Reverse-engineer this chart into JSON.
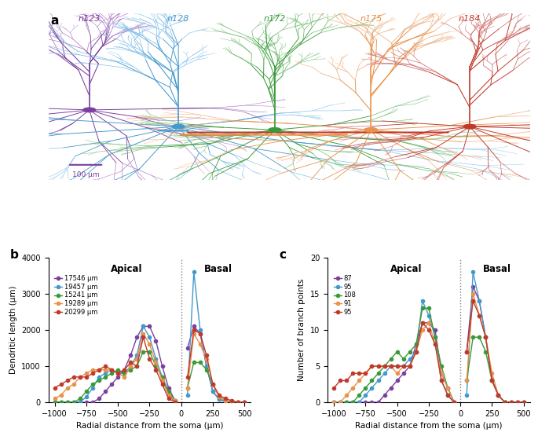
{
  "neuron_names": [
    "n123",
    "n128",
    "n172",
    "n175",
    "n184"
  ],
  "neuron_colors": [
    "#7B3F9E",
    "#4499CC",
    "#3A9A3A",
    "#E8924A",
    "#C0392B"
  ],
  "neuron_colors_light": [
    "#B080C8",
    "#85C1E9",
    "#70BB70",
    "#F0B080",
    "#D07070"
  ],
  "panel_a_label": "a",
  "panel_b_label": "b",
  "panel_c_label": "c",
  "scalebar_text": "100 μm",
  "apical_label": "Apical",
  "basal_label": "Basal",
  "xlabel": "Radial distance from the soma (μm)",
  "ylabel_b": "Dendritic length (μm)",
  "ylabel_c": "Number of branch points",
  "legend_b": [
    "17546 μm",
    "19457 μm",
    "15241 μm",
    "19289 μm",
    "20299 μm"
  ],
  "legend_c": [
    "87",
    "95",
    "108",
    "91",
    "95"
  ],
  "xlim": [
    -1050,
    550
  ],
  "xticks": [
    -1000,
    -750,
    -500,
    -250,
    0,
    250,
    500
  ],
  "ylim_b": [
    0,
    4000
  ],
  "yticks_b": [
    0,
    1000,
    2000,
    3000,
    4000
  ],
  "ylim_c": [
    0,
    20
  ],
  "yticks_c": [
    0,
    5,
    10,
    15,
    20
  ],
  "x_apical": [
    -1000,
    -950,
    -900,
    -850,
    -800,
    -750,
    -700,
    -650,
    -600,
    -550,
    -500,
    -450,
    -400,
    -350,
    -300,
    -250,
    -200,
    -150,
    -100,
    -50
  ],
  "x_basal": [
    50,
    100,
    150,
    200,
    250,
    300,
    350,
    400,
    450,
    500
  ],
  "b_n123_apical": [
    0,
    0,
    0,
    0,
    0,
    0,
    0,
    100,
    300,
    500,
    700,
    900,
    1300,
    1800,
    2100,
    2100,
    1700,
    1000,
    400,
    50
  ],
  "b_n123_basal": [
    1500,
    2100,
    1900,
    1000,
    300,
    80,
    20,
    0,
    0,
    0
  ],
  "b_n128_apical": [
    0,
    0,
    0,
    0,
    0,
    150,
    400,
    700,
    800,
    900,
    800,
    800,
    1000,
    1300,
    2100,
    1800,
    1200,
    700,
    200,
    10
  ],
  "b_n128_basal": [
    200,
    3600,
    2000,
    1000,
    300,
    80,
    20,
    0,
    0,
    0
  ],
  "b_n172_apical": [
    0,
    0,
    0,
    0,
    100,
    300,
    500,
    600,
    700,
    800,
    900,
    800,
    900,
    1000,
    1400,
    1400,
    1000,
    700,
    300,
    50
  ],
  "b_n172_basal": [
    400,
    1100,
    1100,
    900,
    500,
    150,
    50,
    20,
    0,
    0
  ],
  "b_n175_apical": [
    100,
    200,
    400,
    500,
    700,
    800,
    900,
    900,
    900,
    900,
    800,
    700,
    1000,
    1200,
    1900,
    1600,
    1100,
    600,
    200,
    50
  ],
  "b_n175_basal": [
    400,
    1900,
    1600,
    1200,
    500,
    150,
    50,
    20,
    0,
    0
  ],
  "b_n184_apical": [
    400,
    500,
    600,
    700,
    700,
    700,
    800,
    900,
    1000,
    900,
    800,
    900,
    1100,
    1000,
    1800,
    1200,
    900,
    500,
    100,
    10
  ],
  "b_n184_basal": [
    700,
    2000,
    1900,
    1300,
    500,
    200,
    100,
    50,
    0,
    0
  ],
  "c_n123_apical": [
    0,
    0,
    0,
    0,
    0,
    0,
    0,
    0,
    1,
    2,
    3,
    4,
    5,
    8,
    11,
    11,
    10,
    4,
    2,
    0
  ],
  "c_n123_basal": [
    7,
    16,
    14,
    9,
    3,
    1,
    0,
    0,
    0,
    0
  ],
  "c_n128_apical": [
    0,
    0,
    0,
    0,
    0,
    1,
    2,
    3,
    4,
    5,
    5,
    5,
    6,
    7,
    14,
    12,
    9,
    3,
    1,
    0
  ],
  "c_n128_basal": [
    1,
    18,
    14,
    9,
    3,
    1,
    0,
    0,
    0,
    0
  ],
  "c_n172_apical": [
    0,
    0,
    0,
    0,
    1,
    2,
    3,
    4,
    5,
    6,
    7,
    6,
    7,
    8,
    13,
    13,
    9,
    5,
    2,
    0
  ],
  "c_n172_basal": [
    3,
    9,
    9,
    7,
    3,
    1,
    0,
    0,
    0,
    0
  ],
  "c_n175_apical": [
    0,
    0,
    1,
    2,
    3,
    4,
    5,
    5,
    5,
    5,
    4,
    5,
    5,
    7,
    10,
    11,
    8,
    4,
    2,
    0
  ],
  "c_n175_basal": [
    3,
    15,
    12,
    9,
    4,
    1,
    0,
    0,
    0,
    0
  ],
  "c_n184_apical": [
    2,
    3,
    3,
    4,
    4,
    4,
    5,
    5,
    5,
    5,
    5,
    5,
    5,
    7,
    11,
    10,
    8,
    3,
    1,
    0
  ],
  "c_n184_basal": [
    7,
    14,
    12,
    9,
    3,
    1,
    0,
    0,
    0,
    0
  ]
}
